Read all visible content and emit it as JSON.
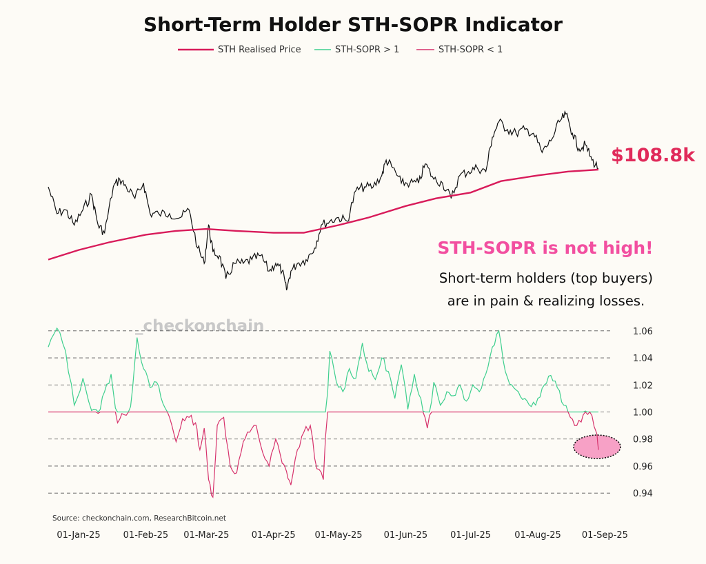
{
  "title": "Short-Term Holder STH-SOPR Indicator",
  "source": "Source: checkonchain.com, ResearchBitcoin.net",
  "watermark": "_checkonchain",
  "price_label": "$108.8k",
  "annotation": {
    "headline": "STH-SOPR is not high!",
    "line1": "Short-term holders (top buyers)",
    "line2": "are in pain & realizing losses."
  },
  "colors": {
    "price": "#111111",
    "realised_price": "#d81b5a",
    "sopr_high": "#3fcf8e",
    "sopr_low": "#d6336c",
    "highlight_fill": "#f7a1c6",
    "grid": "#555555",
    "background": "#fdfbf6"
  },
  "chart_data": [
    {
      "type": "line",
      "panel": "price",
      "x_range": [
        "2024-12-18",
        "2025-08-29"
      ],
      "x_unit": "date",
      "series": [
        {
          "name": "Price",
          "x": [
            "2024-12-18",
            "2024-12-22",
            "2024-12-26",
            "2024-12-30",
            "2025-01-03",
            "2025-01-07",
            "2025-01-10",
            "2025-01-13",
            "2025-01-17",
            "2025-01-20",
            "2025-01-23",
            "2025-01-27",
            "2025-01-31",
            "2025-02-03",
            "2025-02-07",
            "2025-02-12",
            "2025-02-17",
            "2025-02-21",
            "2025-02-25",
            "2025-02-28",
            "2025-03-02",
            "2025-03-04",
            "2025-03-07",
            "2025-03-10",
            "2025-03-14",
            "2025-03-18",
            "2025-03-22",
            "2025-03-26",
            "2025-03-30",
            "2025-04-02",
            "2025-04-05",
            "2025-04-07",
            "2025-04-09",
            "2025-04-12",
            "2025-04-16",
            "2025-04-20",
            "2025-04-23",
            "2025-04-27",
            "2025-05-01",
            "2025-05-05",
            "2025-05-09",
            "2025-05-13",
            "2025-05-17",
            "2025-05-21",
            "2025-05-23",
            "2025-05-26",
            "2025-05-30",
            "2025-06-03",
            "2025-06-07",
            "2025-06-10",
            "2025-06-14",
            "2025-06-18",
            "2025-06-22",
            "2025-06-26",
            "2025-06-30",
            "2025-07-04",
            "2025-07-08",
            "2025-07-11",
            "2025-07-14",
            "2025-07-18",
            "2025-07-22",
            "2025-07-26",
            "2025-07-30",
            "2025-08-03",
            "2025-08-07",
            "2025-08-11",
            "2025-08-14",
            "2025-08-17",
            "2025-08-20",
            "2025-08-23",
            "2025-08-26",
            "2025-08-29"
          ],
          "y": [
            104,
            97,
            98,
            94,
            98,
            102,
            94,
            92,
            104,
            106,
            104,
            101,
            105,
            97,
            97,
            97,
            96,
            98,
            88,
            84,
            94,
            87,
            86,
            80,
            84,
            84,
            85,
            86,
            82,
            84,
            82,
            77,
            82,
            84,
            85,
            88,
            94,
            95,
            96,
            95,
            103,
            104,
            104,
            107,
            111,
            109,
            105,
            105,
            105,
            110,
            106,
            105,
            101,
            107,
            108,
            109,
            108,
            117,
            121,
            119,
            118,
            119,
            118,
            113,
            116,
            121,
            123,
            118,
            114,
            115,
            111,
            108.8
          ]
        },
        {
          "name": "STH Realised Price",
          "x": [
            "2024-12-18",
            "2025-01-01",
            "2025-01-15",
            "2025-02-01",
            "2025-02-15",
            "2025-03-01",
            "2025-03-15",
            "2025-04-01",
            "2025-04-15",
            "2025-05-01",
            "2025-05-15",
            "2025-06-01",
            "2025-06-15",
            "2025-07-01",
            "2025-07-15",
            "2025-08-01",
            "2025-08-15",
            "2025-08-29"
          ],
          "y": [
            85,
            87.5,
            89.5,
            91.5,
            92.5,
            93,
            92.5,
            92,
            92,
            94,
            96,
            99,
            101,
            102.5,
            105.5,
            107,
            108,
            108.5
          ]
        }
      ]
    },
    {
      "type": "line",
      "panel": "sopr",
      "x_range": [
        "2024-12-18",
        "2025-08-29"
      ],
      "x_unit": "date",
      "xlabel_ticks": [
        "01-Jan-25",
        "01-Feb-25",
        "01-Mar-25",
        "01-Apr-25",
        "01-May-25",
        "01-Jun-25",
        "01-Jul-25",
        "01-Aug-25",
        "01-Sep-25"
      ],
      "ylim": [
        0.935,
        1.065
      ],
      "y_ticks": [
        "0.94",
        "0.96",
        "0.98",
        "1.00",
        "1.02",
        "1.04",
        "1.06"
      ],
      "grid": "horizontal dashed",
      "legend": [
        "STH Realised Price",
        "STH-SOPR > 1",
        "STH-SOPR < 1"
      ],
      "series": [
        {
          "name": "STH-SOPR",
          "x": [
            "2024-12-18",
            "2024-12-22",
            "2024-12-26",
            "2024-12-30",
            "2025-01-03",
            "2025-01-07",
            "2025-01-10",
            "2025-01-13",
            "2025-01-16",
            "2025-01-19",
            "2025-01-22",
            "2025-01-25",
            "2025-01-28",
            "2025-01-31",
            "2025-02-03",
            "2025-02-06",
            "2025-02-09",
            "2025-02-12",
            "2025-02-15",
            "2025-02-18",
            "2025-02-21",
            "2025-02-24",
            "2025-02-26",
            "2025-02-28",
            "2025-03-02",
            "2025-03-04",
            "2025-03-06",
            "2025-03-09",
            "2025-03-12",
            "2025-03-15",
            "2025-03-18",
            "2025-03-21",
            "2025-03-24",
            "2025-03-27",
            "2025-03-30",
            "2025-04-02",
            "2025-04-05",
            "2025-04-07",
            "2025-04-09",
            "2025-04-12",
            "2025-04-15",
            "2025-04-18",
            "2025-04-21",
            "2025-04-24",
            "2025-04-27",
            "2025-04-30",
            "2025-05-03",
            "2025-05-06",
            "2025-05-09",
            "2025-05-12",
            "2025-05-15",
            "2025-05-18",
            "2025-05-21",
            "2025-05-24",
            "2025-05-27",
            "2025-05-30",
            "2025-06-02",
            "2025-06-05",
            "2025-06-08",
            "2025-06-11",
            "2025-06-14",
            "2025-06-17",
            "2025-06-20",
            "2025-06-23",
            "2025-06-26",
            "2025-06-29",
            "2025-07-02",
            "2025-07-05",
            "2025-07-08",
            "2025-07-11",
            "2025-07-14",
            "2025-07-17",
            "2025-07-20",
            "2025-07-23",
            "2025-07-26",
            "2025-07-29",
            "2025-08-01",
            "2025-08-04",
            "2025-08-07",
            "2025-08-10",
            "2025-08-13",
            "2025-08-16",
            "2025-08-19",
            "2025-08-22",
            "2025-08-25",
            "2025-08-28",
            "2025-08-29"
          ],
          "y": [
            1.048,
            1.062,
            1.045,
            1.005,
            1.025,
            1.001,
            0.999,
            1.015,
            1.028,
            0.992,
            0.998,
            1.004,
            1.055,
            1.032,
            1.018,
            1.022,
            1.006,
            0.996,
            0.978,
            0.995,
            0.996,
            0.992,
            0.972,
            0.988,
            0.95,
            0.937,
            0.99,
            0.996,
            0.96,
            0.955,
            0.978,
            0.985,
            0.99,
            0.97,
            0.96,
            0.98,
            0.962,
            0.956,
            0.946,
            0.972,
            0.985,
            0.99,
            0.958,
            0.95,
            1.045,
            1.022,
            1.015,
            1.032,
            1.025,
            1.051,
            1.03,
            1.024,
            1.04,
            1.03,
            1.01,
            1.035,
            1.002,
            1.028,
            1.01,
            0.988,
            1.022,
            1.005,
            1.015,
            1.012,
            1.02,
            1.008,
            1.02,
            1.015,
            1.028,
            1.048,
            1.06,
            1.03,
            1.02,
            1.015,
            1.01,
            1.004,
            1.01,
            1.02,
            1.027,
            1.018,
            1.005,
            0.996,
            0.99,
            0.998,
            1.0,
            0.985,
            0.972
          ]
        }
      ]
    }
  ]
}
